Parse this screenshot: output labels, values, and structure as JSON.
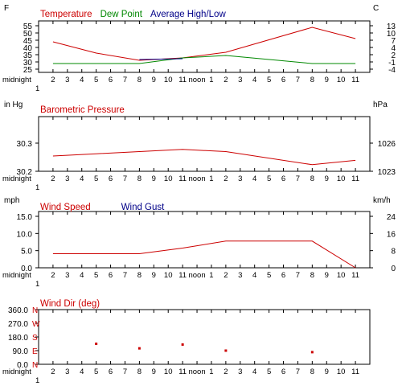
{
  "hour_labels": [
    "midnight",
    "2",
    "3",
    "4",
    "5",
    "6",
    "7",
    "8",
    "9",
    "10",
    "11",
    "noon",
    "1",
    "2",
    "3",
    "4",
    "5",
    "6",
    "7",
    "8",
    "9",
    "10",
    "11"
  ],
  "hour_sublabel": "1",
  "chart_data": [
    {
      "type": "line",
      "unit_left": "F",
      "unit_right": "C",
      "legend": [
        {
          "label": "Temperature",
          "color": "#cc0000"
        },
        {
          "label": "Dew Point",
          "color": "#008800"
        },
        {
          "label": "Average High/Low",
          "color": "#000088"
        }
      ],
      "left_ticks": [
        "55",
        "50",
        "45",
        "40",
        "35",
        "30",
        "25"
      ],
      "right_ticks": [
        "13",
        "10",
        "7",
        "4",
        "2",
        "-1",
        "-4"
      ],
      "ylim": [
        25,
        57
      ],
      "series": [
        {
          "name": "Temperature",
          "color": "#cc0000",
          "x": [
            1,
            4,
            7,
            10,
            13,
            19,
            22
          ],
          "values": [
            44,
            37,
            32.5,
            34,
            37.5,
            53,
            46
          ]
        },
        {
          "name": "Dew Point",
          "color": "#008800",
          "x": [
            1,
            4,
            7,
            10,
            13,
            19,
            22
          ],
          "values": [
            30.5,
            30.5,
            30.5,
            34,
            35.5,
            30.5,
            30.5
          ]
        },
        {
          "name": "Average High/Low",
          "color": "#000088",
          "x": [
            7,
            10
          ],
          "values": [
            33,
            33.5
          ]
        }
      ]
    },
    {
      "type": "line",
      "unit_left": "in Hg",
      "unit_right": "hPa",
      "legend": [
        {
          "label": "Barometric Pressure",
          "color": "#cc0000"
        }
      ],
      "left_ticks": [
        "30.3",
        "30.2"
      ],
      "right_ticks": [
        "1026",
        "1023"
      ],
      "ylim": [
        30.19,
        30.44
      ],
      "series": [
        {
          "name": "Barometric Pressure",
          "color": "#cc0000",
          "x": [
            1,
            4,
            7,
            10,
            13,
            19,
            22
          ],
          "values": [
            30.26,
            30.27,
            30.28,
            30.29,
            30.28,
            30.22,
            30.24
          ]
        }
      ]
    },
    {
      "type": "line",
      "unit_left": "mph",
      "unit_right": "km/h",
      "legend": [
        {
          "label": "Wind Speed",
          "color": "#cc0000"
        },
        {
          "label": "Wind Gust",
          "color": "#000088"
        }
      ],
      "left_ticks": [
        "15.0",
        "10.0",
        "5.0",
        "0.0"
      ],
      "right_ticks": [
        "24",
        "16",
        "8",
        "0"
      ],
      "ylim": [
        0,
        20
      ],
      "series": [
        {
          "name": "Wind Speed",
          "color": "#cc0000",
          "x": [
            1,
            4,
            7,
            10,
            13,
            19,
            22
          ],
          "values": [
            5,
            5,
            5,
            7,
            9.5,
            9.5,
            0
          ]
        }
      ]
    },
    {
      "type": "scatter",
      "unit_left": "",
      "unit_right": "",
      "legend": [
        {
          "label": "Wind Dir (deg)",
          "color": "#cc0000"
        }
      ],
      "left_ticks": [
        "360.0",
        "270.0",
        "180.0",
        "90.0",
        "0.0"
      ],
      "compass": [
        "N",
        "W",
        "S",
        "E",
        "N"
      ],
      "ylim": [
        0,
        360
      ],
      "series": [
        {
          "name": "Wind Dir (deg)",
          "color": "#cc0000",
          "x": [
            4,
            7,
            10,
            13,
            19
          ],
          "values": [
            135,
            105,
            130,
            90,
            80
          ]
        }
      ]
    }
  ]
}
